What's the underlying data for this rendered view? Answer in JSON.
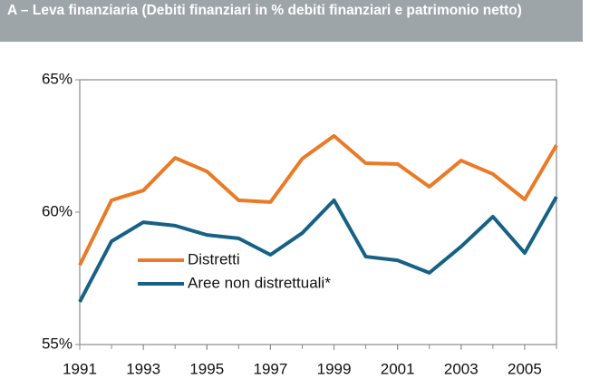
{
  "chart_data": {
    "type": "line",
    "title": "A – Leva finanziaria (Debiti finanziari in % debiti finanziari e patrimonio netto)",
    "x": [
      1991,
      1992,
      1993,
      1994,
      1995,
      1996,
      1997,
      1998,
      1999,
      2000,
      2001,
      2002,
      2003,
      2004,
      2005,
      2006
    ],
    "series": [
      {
        "name": "Distretti",
        "color": "#ea7a26",
        "values": [
          58.0,
          60.45,
          60.82,
          62.05,
          61.54,
          60.45,
          60.38,
          62.02,
          62.88,
          61.85,
          61.82,
          60.96,
          61.95,
          61.44,
          60.48,
          62.53
        ]
      },
      {
        "name": "Aree non distrettuali*",
        "color": "#166185",
        "values": [
          56.61,
          58.9,
          59.62,
          59.49,
          59.14,
          59.01,
          58.39,
          59.21,
          60.45,
          58.32,
          58.18,
          57.71,
          58.7,
          59.83,
          58.46,
          60.58
        ]
      }
    ],
    "xlim": [
      1991,
      2006
    ],
    "xticks": [
      1991,
      1993,
      1995,
      1997,
      1999,
      2001,
      2003,
      2005
    ],
    "ylim": [
      55,
      65
    ],
    "yticks": [
      {
        "value": 55,
        "label": "55%"
      },
      {
        "value": 60,
        "label": "60%"
      },
      {
        "value": 65,
        "label": "65%"
      }
    ],
    "grid": false
  }
}
